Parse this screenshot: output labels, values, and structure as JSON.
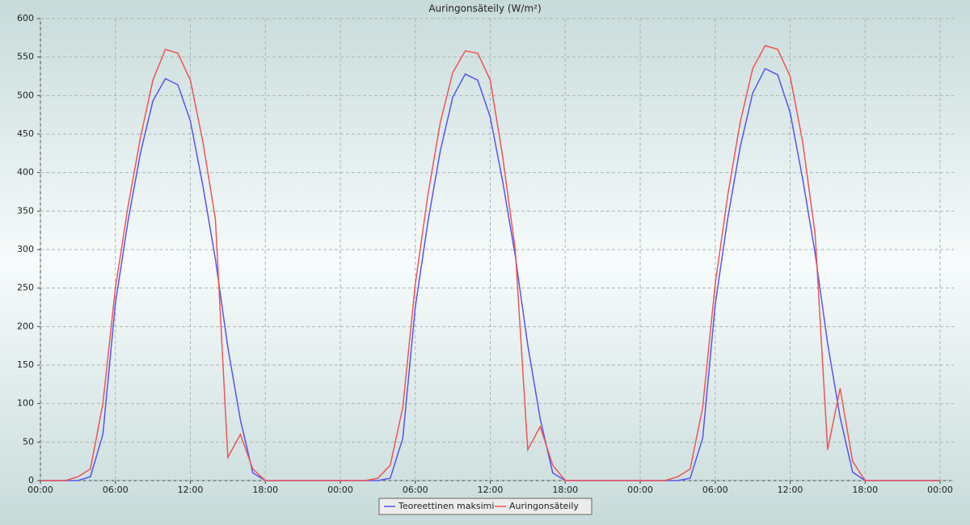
{
  "chart_data": {
    "type": "line",
    "title": "Auringonsäteily (W/m²)",
    "x": [
      0,
      1,
      2,
      3,
      4,
      5,
      6,
      7,
      8,
      9,
      10,
      11,
      12,
      13,
      14,
      15,
      16,
      17,
      18,
      19,
      20,
      21,
      22,
      23,
      24,
      25,
      26,
      27,
      28,
      29,
      30,
      31,
      32,
      33,
      34,
      35,
      36,
      37,
      38,
      39,
      40,
      41,
      42,
      43,
      44,
      45,
      46,
      47,
      48,
      49,
      50,
      51,
      52,
      53,
      54,
      55,
      56,
      57,
      58,
      59,
      60,
      61,
      62,
      63,
      64,
      65,
      66,
      67,
      68,
      69,
      70,
      71,
      72
    ],
    "series": [
      {
        "name": "Teoreettinen maksimi",
        "color": "#5555ee",
        "values": [
          0,
          0,
          0,
          0,
          5,
          60,
          230,
          336,
          425,
          493,
          522,
          514,
          467,
          383,
          288,
          173,
          79,
          10,
          0,
          0,
          0,
          0,
          0,
          0,
          0,
          0,
          0,
          0,
          3,
          55,
          225,
          335,
          428,
          498,
          528,
          520,
          472,
          388,
          292,
          176,
          80,
          10,
          0,
          0,
          0,
          0,
          0,
          0,
          0,
          0,
          0,
          0,
          3,
          55,
          228,
          340,
          433,
          503,
          535,
          527,
          478,
          392,
          295,
          178,
          82,
          11,
          0,
          0,
          0,
          0,
          0,
          0,
          0
        ]
      },
      {
        "name": "Auringonsäteily",
        "color": "#ee5555",
        "values": [
          0,
          0,
          0,
          5,
          15,
          100,
          250,
          355,
          445,
          520,
          560,
          555,
          520,
          440,
          340,
          30,
          60,
          15,
          0,
          0,
          0,
          0,
          0,
          0,
          0,
          0,
          0,
          3,
          20,
          95,
          255,
          370,
          465,
          530,
          558,
          555,
          520,
          420,
          300,
          40,
          70,
          20,
          0,
          0,
          0,
          0,
          0,
          0,
          0,
          0,
          0,
          5,
          15,
          95,
          255,
          370,
          465,
          535,
          565,
          560,
          525,
          440,
          320,
          40,
          120,
          25,
          0,
          0,
          0,
          0,
          0,
          0,
          0
        ]
      }
    ],
    "xlim": [
      0,
      73.1
    ],
    "ylim": [
      0,
      600
    ],
    "xticks": [
      {
        "value": 0,
        "label": "00:00"
      },
      {
        "value": 6,
        "label": "06:00"
      },
      {
        "value": 12,
        "label": "12:00"
      },
      {
        "value": 18,
        "label": "18:00"
      },
      {
        "value": 24,
        "label": "00:00"
      },
      {
        "value": 30,
        "label": "06:00"
      },
      {
        "value": 36,
        "label": "12:00"
      },
      {
        "value": 42,
        "label": "18:00"
      },
      {
        "value": 48,
        "label": "00:00"
      },
      {
        "value": 54,
        "label": "06:00"
      },
      {
        "value": 60,
        "label": "12:00"
      },
      {
        "value": 66,
        "label": "18:00"
      },
      {
        "value": 72,
        "label": "00:00"
      }
    ],
    "yticks": [
      0,
      50,
      100,
      150,
      200,
      250,
      300,
      350,
      400,
      450,
      500,
      550,
      600
    ],
    "grid": true,
    "legend": "bottom"
  }
}
